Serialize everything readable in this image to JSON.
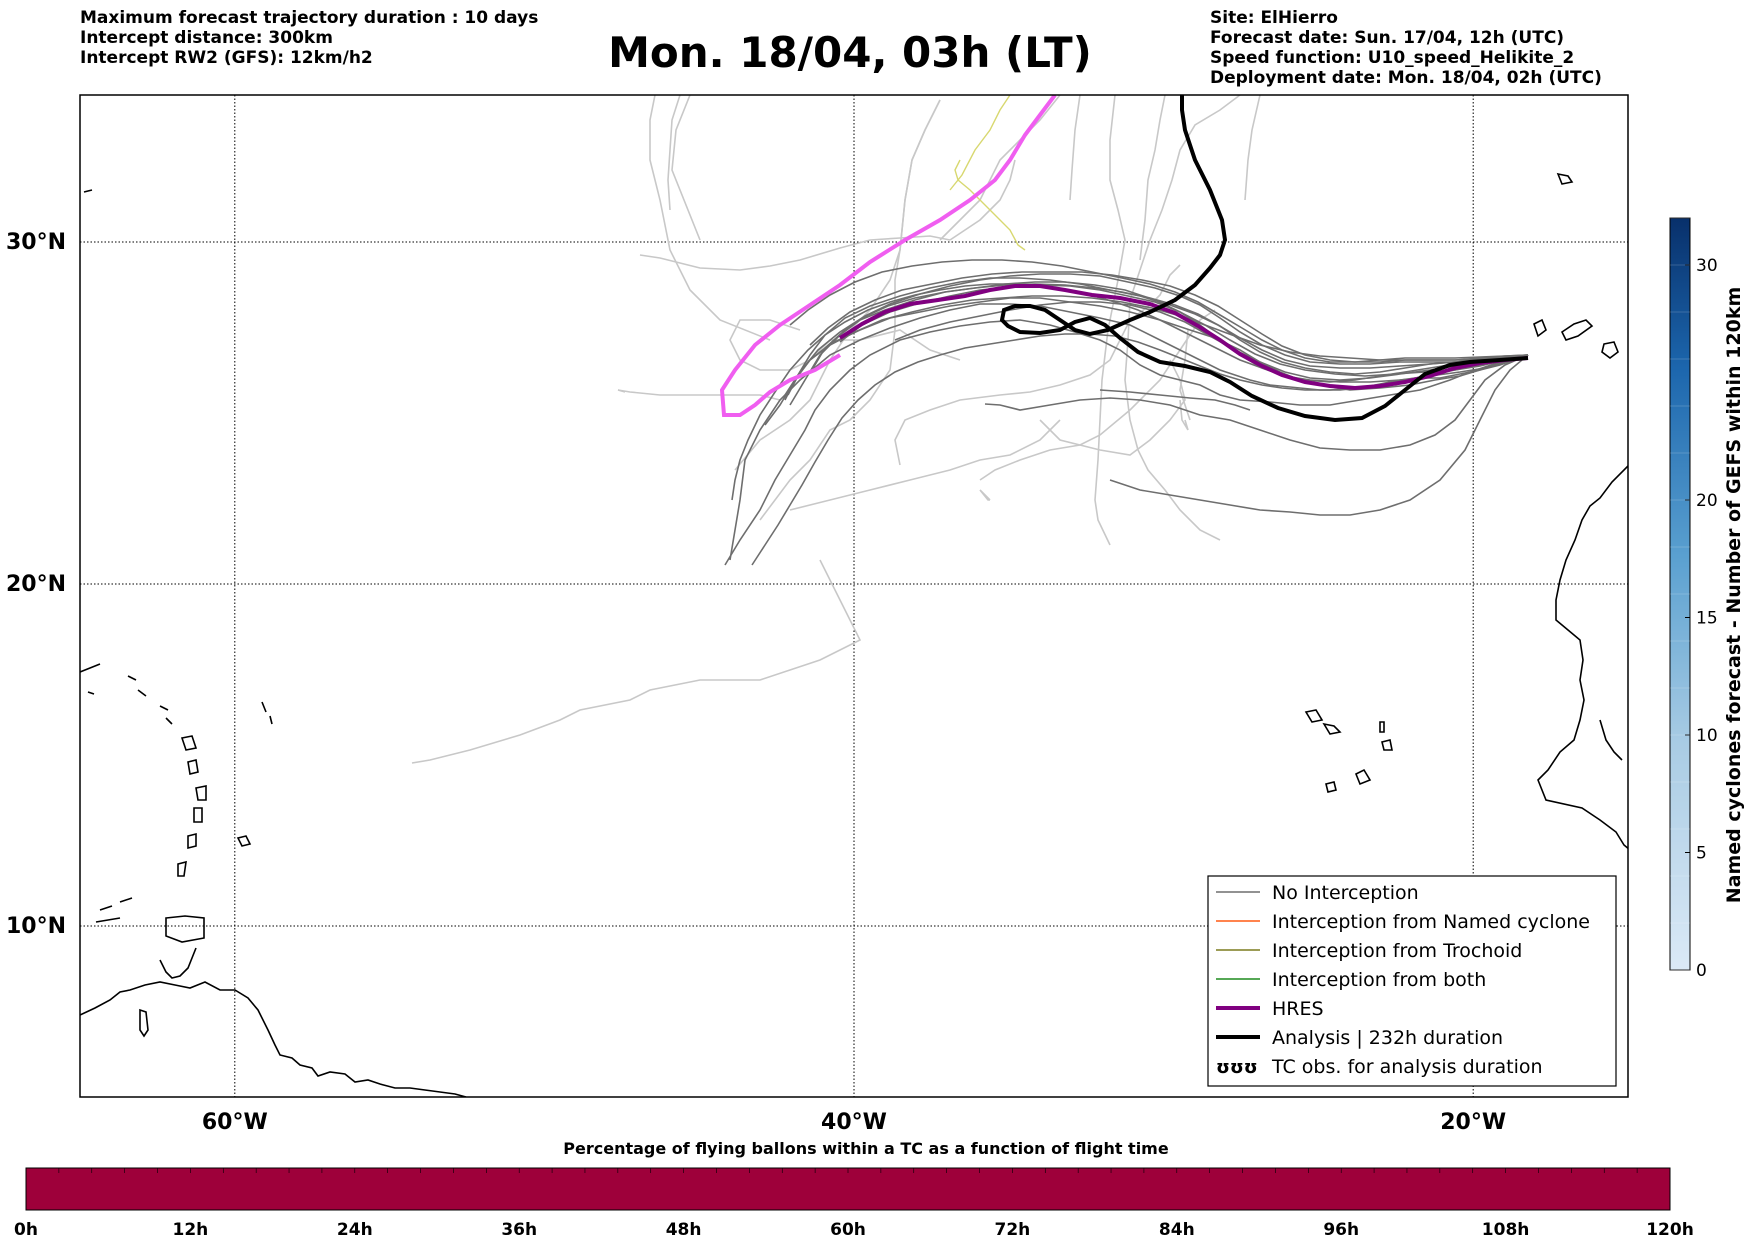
{
  "title": "Mon. 18/04, 03h (LT)",
  "header_left": [
    "Maximum forecast trajectory duration : 10 days",
    "Intercept distance: 300km",
    "Intercept RW2 (GFS):  12km/h2"
  ],
  "header_right": [
    "Site: ElHierro",
    "Forecast date: Sun. 17/04, 12h (UTC)",
    "Speed function: U10_speed_Helikite_2",
    "Deployment date: Mon. 18/04, 02h (UTC)"
  ],
  "map": {
    "lon_range": [
      -65,
      -15
    ],
    "lat_range": [
      5,
      34.3
    ],
    "lat_labels": [
      "30°N",
      "20°N",
      "10°N"
    ],
    "lat_values": [
      30,
      20,
      10
    ],
    "lon_labels": [
      "60°W",
      "40°W",
      "20°W"
    ],
    "lon_values": [
      -60,
      -40,
      -20
    ]
  },
  "legend": {
    "items": [
      {
        "label": "No Interception",
        "color": "#6e6e6e",
        "width": 1.5
      },
      {
        "label": "Interception from Named cyclone",
        "color": "#ff5a14",
        "width": 1.5
      },
      {
        "label": "Interception from Trochoid",
        "color": "#7b7b1e",
        "width": 1.5
      },
      {
        "label": "Interception from both",
        "color": "#1e8c1e",
        "width": 1.5
      },
      {
        "label": "HRES",
        "color": "#800080",
        "width": 4
      },
      {
        "label": "Analysis | 232h duration",
        "color": "#000000",
        "width": 4
      }
    ],
    "symbol_item": {
      "label": "TC obs. for analysis duration",
      "symbol": "ʊʊʊ"
    }
  },
  "colorbar_right": {
    "label": "Named cyclones forecast - Number of GEFS within 120km",
    "range": [
      0,
      32
    ],
    "ticks": [
      0,
      5,
      10,
      15,
      20,
      30
    ]
  },
  "colorbar_bottom": {
    "title": "Percentage of flying ballons within a TC as a function of flight time",
    "color": "#9e003a",
    "tick_labels": [
      "0h",
      "12h",
      "24h",
      "36h",
      "48h",
      "60h",
      "72h",
      "84h",
      "96h",
      "108h",
      "120h"
    ]
  }
}
